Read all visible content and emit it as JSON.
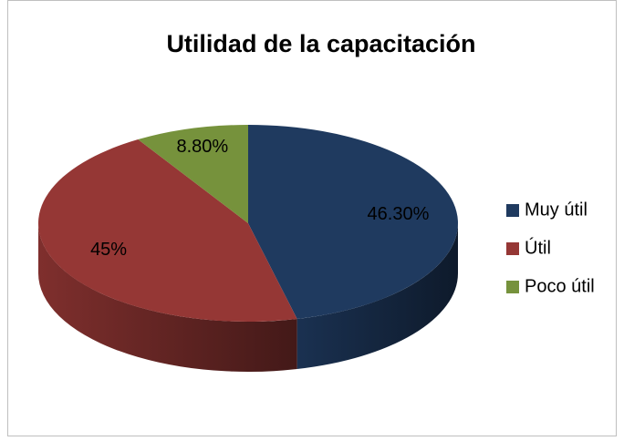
{
  "chart_data": {
    "type": "pie3d",
    "title": "Utilidad de la capacitación",
    "categories": [
      "Muy útil",
      "Útil",
      "Poco útil"
    ],
    "values": [
      46.3,
      45,
      8.8
    ],
    "value_labels": [
      "46.30%",
      "45%",
      "8.80%"
    ],
    "colors": [
      "#1F3A5F",
      "#953735",
      "#76923C"
    ],
    "legend": "right"
  }
}
